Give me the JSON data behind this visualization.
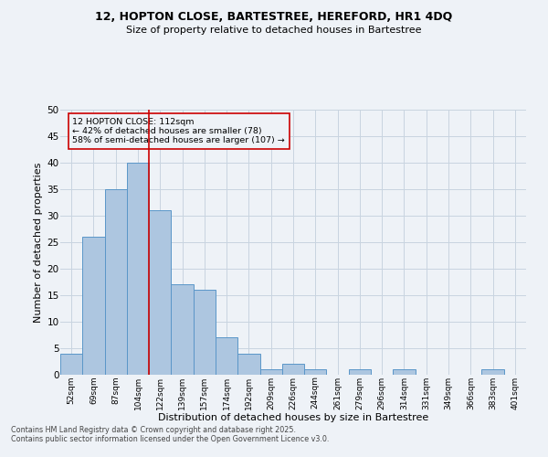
{
  "title_line1": "12, HOPTON CLOSE, BARTESTREE, HEREFORD, HR1 4DQ",
  "title_line2": "Size of property relative to detached houses in Bartestree",
  "xlabel": "Distribution of detached houses by size in Bartestree",
  "ylabel": "Number of detached properties",
  "categories": [
    "52sqm",
    "69sqm",
    "87sqm",
    "104sqm",
    "122sqm",
    "139sqm",
    "157sqm",
    "174sqm",
    "192sqm",
    "209sqm",
    "226sqm",
    "244sqm",
    "261sqm",
    "279sqm",
    "296sqm",
    "314sqm",
    "331sqm",
    "349sqm",
    "366sqm",
    "383sqm",
    "401sqm"
  ],
  "values": [
    4,
    26,
    35,
    40,
    31,
    17,
    16,
    7,
    4,
    1,
    2,
    1,
    0,
    1,
    0,
    1,
    0,
    0,
    0,
    1,
    0
  ],
  "bar_color": "#adc6e0",
  "bar_edge_color": "#5a96c8",
  "grid_color": "#c8d4e0",
  "vline_x": 3.5,
  "vline_color": "#cc0000",
  "annotation_text_line1": "12 HOPTON CLOSE: 112sqm",
  "annotation_text_line2": "← 42% of detached houses are smaller (78)",
  "annotation_text_line3": "58% of semi-detached houses are larger (107) →",
  "annotation_box_color": "#cc0000",
  "ylim": [
    0,
    50
  ],
  "yticks": [
    0,
    5,
    10,
    15,
    20,
    25,
    30,
    35,
    40,
    45,
    50
  ],
  "footer_line1": "Contains HM Land Registry data © Crown copyright and database right 2025.",
  "footer_line2": "Contains public sector information licensed under the Open Government Licence v3.0.",
  "bg_color": "#eef2f7"
}
